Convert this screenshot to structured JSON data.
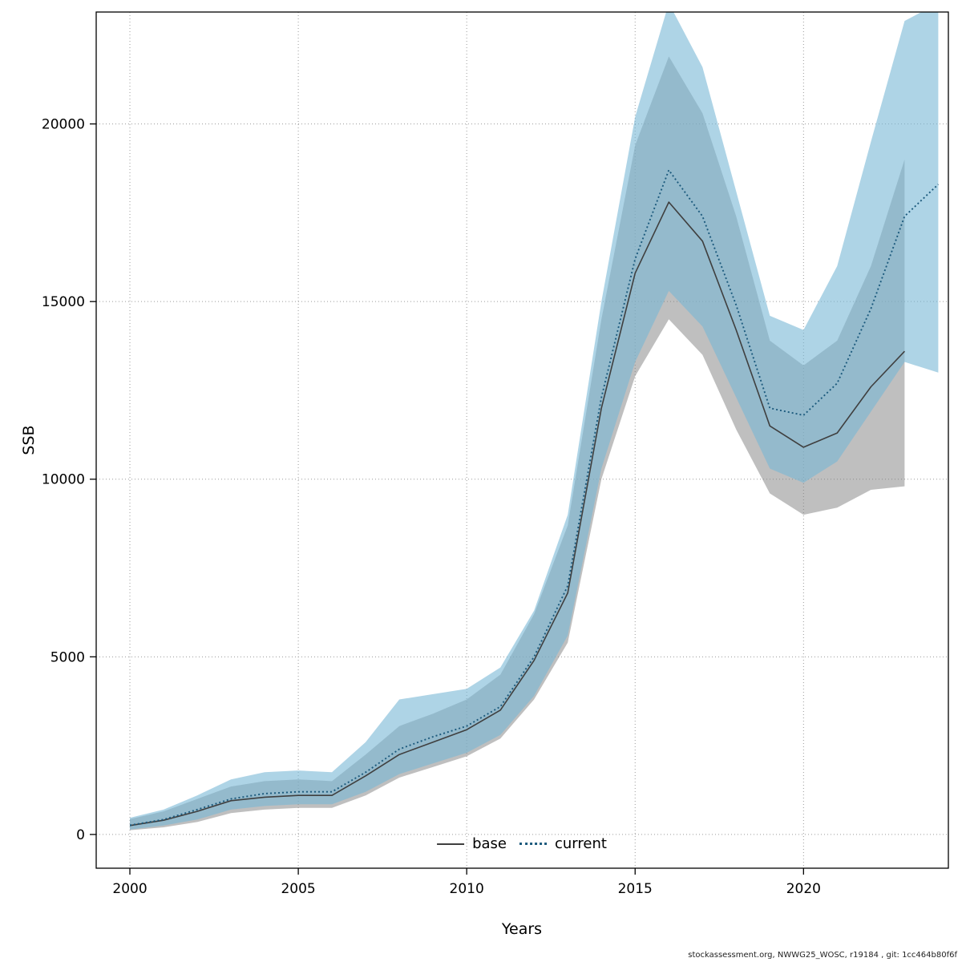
{
  "footer": {
    "credit": "stockassessment.org, NWWG25_WOSC, r19184 , git: 1cc464b80f6f"
  },
  "chart_data": {
    "type": "line",
    "title": "",
    "xlabel": "Years",
    "ylabel": "SSB",
    "xlim": [
      1999.0,
      2024.3
    ],
    "ylim": [
      -950,
      23150
    ],
    "xticks": [
      2000,
      2005,
      2010,
      2015,
      2020
    ],
    "yticks": [
      0,
      5000,
      10000,
      15000,
      20000
    ],
    "grid": "dotted",
    "legend_position": "bottom-center-inside",
    "series": [
      {
        "name": "base",
        "line_style": "solid",
        "color": "#3f3f3f",
        "band_color": "rgba(128,128,128,0.5)",
        "x": [
          2000,
          2001,
          2002,
          2003,
          2004,
          2005,
          2006,
          2007,
          2008,
          2009,
          2010,
          2011,
          2012,
          2013,
          2014,
          2015,
          2016,
          2017,
          2018,
          2019,
          2020,
          2021,
          2022,
          2023
        ],
        "y": [
          250,
          400,
          650,
          950,
          1050,
          1100,
          1100,
          1650,
          2250,
          2600,
          2950,
          3500,
          4900,
          6800,
          12000,
          15800,
          17800,
          16700,
          14200,
          11500,
          10900,
          11300,
          12600,
          13600
        ],
        "lower": [
          120,
          200,
          350,
          600,
          700,
          750,
          750,
          1100,
          1600,
          1900,
          2200,
          2700,
          3800,
          5400,
          10000,
          12900,
          14500,
          13500,
          11400,
          9600,
          9000,
          9200,
          9700,
          9800
        ],
        "upper": [
          430,
          650,
          1000,
          1350,
          1500,
          1550,
          1500,
          2250,
          3050,
          3400,
          3800,
          4500,
          6200,
          8700,
          14500,
          19400,
          21900,
          20300,
          17400,
          13900,
          13200,
          13900,
          16000,
          19000
        ]
      },
      {
        "name": "current",
        "line_style": "dotted",
        "color": "#1c5a7d",
        "band_color": "rgba(120,184,214,0.6)",
        "x": [
          2000,
          2001,
          2002,
          2003,
          2004,
          2005,
          2006,
          2007,
          2008,
          2009,
          2010,
          2011,
          2012,
          2013,
          2014,
          2015,
          2016,
          2017,
          2018,
          2019,
          2020,
          2021,
          2022,
          2023,
          2024
        ],
        "y": [
          260,
          420,
          700,
          1000,
          1150,
          1200,
          1200,
          1750,
          2400,
          2750,
          3050,
          3600,
          5000,
          7000,
          12300,
          16200,
          18700,
          17400,
          14900,
          12000,
          11800,
          12700,
          14800,
          17400,
          18300
        ],
        "lower": [
          140,
          250,
          420,
          700,
          800,
          850,
          850,
          1200,
          1700,
          2000,
          2300,
          2800,
          3900,
          5600,
          10300,
          13300,
          15300,
          14300,
          12300,
          10300,
          9900,
          10500,
          11900,
          13300,
          13000
        ],
        "upper": [
          470,
          700,
          1100,
          1550,
          1750,
          1800,
          1750,
          2600,
          3800,
          3950,
          4100,
          4700,
          6300,
          9000,
          15000,
          20200,
          23400,
          21600,
          18100,
          14600,
          14200,
          16000,
          19500,
          22900,
          23400
        ]
      }
    ]
  }
}
